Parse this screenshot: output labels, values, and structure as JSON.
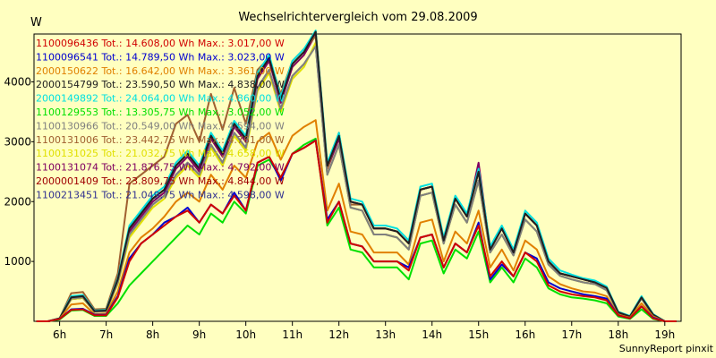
{
  "chart_data": {
    "type": "line",
    "title": "Wechselrichtervergleich vom 29.08.2009",
    "ylabel": "W",
    "credit": "SunnyReport pinxit",
    "x_tick_labels": [
      "6h",
      "7h",
      "8h",
      "9h",
      "10h",
      "11h",
      "12h",
      "13h",
      "14h",
      "15h",
      "16h",
      "17h",
      "18h",
      "19h"
    ],
    "y_tick_labels": [
      "1000",
      "2000",
      "3000",
      "4000"
    ],
    "x_range_hours": [
      5.45,
      19.35
    ],
    "ylim": [
      0,
      4800
    ],
    "grid": false,
    "legend_position": "top-left",
    "x": [
      5.5,
      5.75,
      6.0,
      6.25,
      6.5,
      6.75,
      7.0,
      7.25,
      7.5,
      7.75,
      8.0,
      8.25,
      8.5,
      8.75,
      9.0,
      9.25,
      9.5,
      9.75,
      10.0,
      10.25,
      10.5,
      10.75,
      11.0,
      11.25,
      11.5,
      11.75,
      12.0,
      12.25,
      12.5,
      12.75,
      13.0,
      13.25,
      13.5,
      13.75,
      14.0,
      14.25,
      14.5,
      14.75,
      15.0,
      15.25,
      15.5,
      15.75,
      16.0,
      16.25,
      16.5,
      16.75,
      17.0,
      17.25,
      17.5,
      17.75,
      18.0,
      18.25,
      18.5,
      18.75,
      19.0,
      19.25
    ],
    "series": [
      {
        "name": "1100096436 Tot.: 14.608,00 Wh Max.: 3.017,00 W",
        "color": "#D00000",
        "values": [
          0,
          0,
          40,
          190,
          200,
          100,
          100,
          400,
          1000,
          1300,
          1450,
          1600,
          1750,
          1850,
          1650,
          1950,
          1800,
          2100,
          1850,
          2650,
          2750,
          2400,
          2800,
          2900,
          3017,
          1650,
          2000,
          1300,
          1250,
          1000,
          1000,
          1000,
          850,
          1400,
          1450,
          900,
          1300,
          1150,
          1600,
          750,
          1000,
          750,
          1150,
          1000,
          600,
          500,
          450,
          420,
          400,
          350,
          100,
          50,
          250,
          50,
          0,
          0
        ]
      },
      {
        "name": "1100096541 Tot.: 14.789,50 Wh Max.: 3.023,00 W",
        "color": "#0000D0",
        "values": [
          0,
          0,
          40,
          200,
          210,
          110,
          110,
          420,
          1050,
          1300,
          1450,
          1650,
          1750,
          1900,
          1650,
          1950,
          1800,
          2150,
          1850,
          2650,
          2750,
          2350,
          2800,
          2900,
          3023,
          1700,
          2000,
          1300,
          1250,
          1000,
          1000,
          1000,
          900,
          1400,
          1450,
          900,
          1300,
          1150,
          1650,
          700,
          950,
          750,
          1150,
          1050,
          650,
          550,
          500,
          450,
          420,
          380,
          100,
          50,
          250,
          60,
          0,
          0
        ]
      },
      {
        "name": "2000150622 Tot.: 16.642,00 Wh Max.: 3.361,00 W",
        "color": "#E08000",
        "values": [
          0,
          0,
          40,
          280,
          300,
          120,
          130,
          500,
          1150,
          1400,
          1550,
          1750,
          2000,
          2150,
          2000,
          2450,
          2200,
          2600,
          2400,
          3000,
          3150,
          2700,
          3100,
          3250,
          3361,
          1850,
          2300,
          1500,
          1450,
          1150,
          1150,
          1150,
          950,
          1650,
          1700,
          1000,
          1500,
          1300,
          1850,
          900,
          1200,
          850,
          1350,
          1200,
          750,
          620,
          550,
          500,
          480,
          420,
          110,
          60,
          300,
          80,
          0,
          0
        ]
      },
      {
        "name": "2000154799 Tot.: 23.590,50 Wh Max.: 4.838,00 W",
        "color": "#202020",
        "values": [
          0,
          0,
          50,
          400,
          420,
          170,
          180,
          700,
          1550,
          1800,
          2050,
          2200,
          2600,
          2800,
          2550,
          3100,
          2800,
          3300,
          3050,
          4100,
          4400,
          3700,
          4300,
          4500,
          4838,
          2600,
          3100,
          2000,
          1950,
          1550,
          1550,
          1500,
          1300,
          2200,
          2250,
          1350,
          2050,
          1750,
          2500,
          1200,
          1550,
          1150,
          1800,
          1600,
          1000,
          800,
          750,
          700,
          650,
          560,
          150,
          80,
          400,
          110,
          0,
          0
        ]
      },
      {
        "name": "2000149892 Tot.: 24.064,00 Wh Max.: 4.860,00 W",
        "color": "#00E0E0",
        "values": [
          0,
          0,
          50,
          420,
          440,
          180,
          190,
          720,
          1600,
          1850,
          2100,
          2250,
          2650,
          2850,
          2600,
          3150,
          2850,
          3350,
          3100,
          4150,
          4450,
          3750,
          4350,
          4550,
          4860,
          2650,
          3150,
          2050,
          2000,
          1600,
          1600,
          1550,
          1350,
          2250,
          2300,
          1400,
          2100,
          1800,
          2550,
          1250,
          1600,
          1200,
          1850,
          1650,
          1050,
          850,
          780,
          720,
          680,
          580,
          160,
          90,
          420,
          120,
          0,
          0
        ]
      },
      {
        "name": "1100129553 Tot.: 13.305,75 Wh Max.: 3.052,00 W",
        "color": "#00E000",
        "values": [
          0,
          0,
          30,
          180,
          190,
          90,
          90,
          300,
          600,
          800,
          1000,
          1200,
          1400,
          1600,
          1450,
          1800,
          1650,
          2000,
          1800,
          2600,
          2700,
          2400,
          2800,
          2950,
          3052,
          1600,
          1900,
          1200,
          1150,
          900,
          900,
          900,
          700,
          1300,
          1350,
          800,
          1200,
          1050,
          1500,
          650,
          900,
          650,
          1050,
          900,
          550,
          450,
          400,
          380,
          350,
          300,
          80,
          40,
          200,
          40,
          0,
          0
        ]
      },
      {
        "name": "1100130966 Tot.: 20.549,00 Wh Max.: 4.594,00 W",
        "color": "#808080",
        "values": [
          0,
          0,
          50,
          380,
          400,
          160,
          170,
          650,
          1450,
          1700,
          1950,
          2100,
          2450,
          2650,
          2450,
          2950,
          2650,
          3150,
          2900,
          3900,
          4200,
          3550,
          4100,
          4300,
          4594,
          2450,
          2950,
          1900,
          1850,
          1450,
          1450,
          1400,
          1200,
          2100,
          2150,
          1300,
          1950,
          1650,
          2350,
          1150,
          1450,
          1100,
          1700,
          1500,
          950,
          760,
          700,
          650,
          620,
          520,
          140,
          80,
          380,
          100,
          0,
          0
        ]
      },
      {
        "name": "1100131006 Tot.: 23.442,75 Wh Max.: 4.761,00 W",
        "color": "#A06030",
        "values": [
          0,
          0,
          50,
          470,
          490,
          200,
          210,
          800,
          2300,
          2450,
          2600,
          2750,
          3300,
          3450,
          3000,
          3800,
          3200,
          3900,
          3300,
          4200,
          4400,
          3800,
          4350,
          4550,
          4761,
          2550,
          3150,
          1950,
          1950,
          1550,
          1550,
          1500,
          1300,
          2200,
          2250,
          1350,
          2050,
          1750,
          2500,
          1200,
          1550,
          1150,
          1800,
          1600,
          1000,
          800,
          750,
          700,
          650,
          560,
          150,
          80,
          400,
          110,
          0,
          0
        ]
      },
      {
        "name": "1100131025 Tot.: 21.032,75 Wh Max.: 4.658,00 W",
        "color": "#E0E000",
        "values": [
          0,
          0,
          50,
          370,
          390,
          160,
          170,
          620,
          1400,
          1650,
          1900,
          2050,
          2400,
          2600,
          2400,
          2900,
          2600,
          3100,
          2850,
          3850,
          4150,
          3500,
          4050,
          4250,
          4658,
          2450,
          2950,
          1900,
          1850,
          1450,
          1450,
          1400,
          1200,
          2100,
          2150,
          1300,
          1950,
          1650,
          2350,
          1150,
          1450,
          1100,
          1700,
          1500,
          950,
          760,
          700,
          650,
          620,
          520,
          140,
          80,
          380,
          100,
          0,
          0
        ]
      },
      {
        "name": "1100131074 Tot.: 21.876,75 Wh Max.: 4.792,00 W",
        "color": "#800060",
        "values": [
          0,
          0,
          50,
          390,
          410,
          170,
          180,
          680,
          1500,
          1750,
          2000,
          2150,
          2550,
          2750,
          2500,
          3050,
          2750,
          3250,
          3000,
          4050,
          4350,
          3650,
          4250,
          4450,
          4792,
          2550,
          3050,
          2000,
          1950,
          1550,
          1550,
          1500,
          1300,
          2200,
          2250,
          1350,
          2050,
          1750,
          2650,
          1200,
          1550,
          1150,
          1800,
          1600,
          1000,
          800,
          750,
          700,
          650,
          560,
          150,
          80,
          400,
          110,
          0,
          0
        ]
      },
      {
        "name": "2000001409 Tot.: 23.809,75 Wh Max.: 4.844,00 W",
        "color": "#A00000",
        "values": [
          0,
          0,
          50,
          400,
          420,
          170,
          180,
          700,
          1550,
          1800,
          2050,
          2200,
          2600,
          2800,
          2550,
          3100,
          2800,
          3300,
          3050,
          4100,
          4400,
          3700,
          4300,
          4500,
          4844,
          2600,
          3100,
          2000,
          1950,
          1550,
          1550,
          1500,
          1300,
          2200,
          2250,
          1350,
          2050,
          1750,
          2500,
          1200,
          1550,
          1150,
          1800,
          1600,
          1000,
          800,
          750,
          700,
          650,
          560,
          150,
          80,
          400,
          110,
          0,
          0
        ]
      },
      {
        "name": "1100213451 Tot.: 21.049,75 Wh Max.: 4.598,00 W",
        "color": "#303090",
        "values": [
          0,
          0,
          50,
          370,
          390,
          160,
          170,
          640,
          1450,
          1700,
          1950,
          2100,
          2450,
          2650,
          2450,
          2950,
          2650,
          3150,
          2900,
          3900,
          4200,
          3550,
          4100,
          4300,
          4598,
          2450,
          2950,
          1900,
          1850,
          1450,
          1450,
          1400,
          1200,
          2100,
          2150,
          1300,
          1950,
          1650,
          2350,
          1150,
          1450,
          1100,
          1700,
          1500,
          950,
          760,
          700,
          650,
          620,
          520,
          140,
          80,
          380,
          100,
          0,
          0
        ]
      }
    ]
  }
}
